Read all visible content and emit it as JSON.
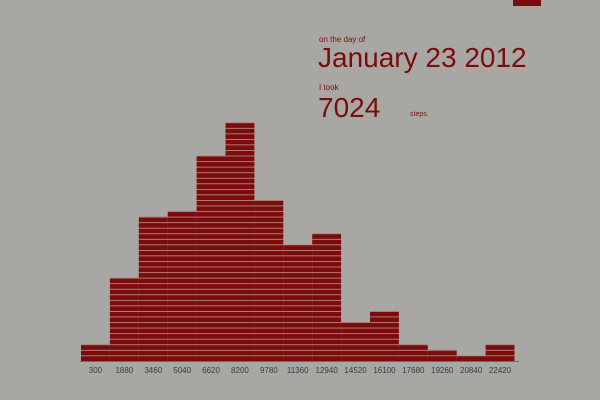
{
  "chart_data": {
    "type": "bar",
    "intro": "on the day of",
    "date": "January 23 2012",
    "took": "I took",
    "steps": "7024",
    "unit": "steps.",
    "color": "#7a0c0c",
    "categories": [
      "300",
      "1880",
      "3460",
      "5040",
      "6620",
      "8200",
      "9780",
      "11360",
      "12940",
      "14520",
      "16100",
      "17680",
      "19260",
      "20840",
      "22420"
    ],
    "values": [
      3,
      15,
      26,
      27,
      37,
      43,
      29,
      21,
      23,
      7,
      9,
      3,
      2,
      1,
      3
    ]
  }
}
